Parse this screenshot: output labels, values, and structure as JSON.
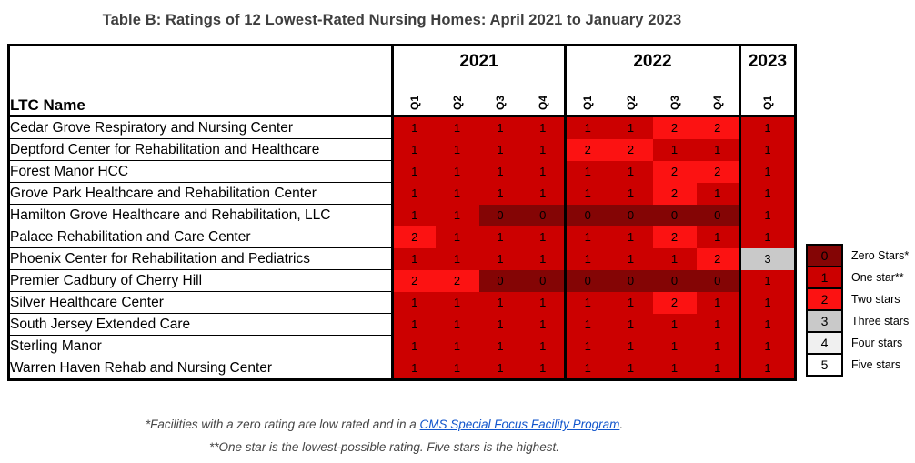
{
  "title": "Table B: Ratings of 12 Lowest-Rated Nursing Homes: April 2021 to January 2023",
  "table": {
    "ltc_header": "LTC Name",
    "year_groups": [
      {
        "year": "2021",
        "quarters": [
          "Q1",
          "Q2",
          "Q3",
          "Q4"
        ]
      },
      {
        "year": "2022",
        "quarters": [
          "Q1",
          "Q2",
          "Q3",
          "Q4"
        ]
      },
      {
        "year": "2023",
        "quarters": [
          "Q1"
        ]
      }
    ]
  },
  "rating_colors": {
    "0": "#840505",
    "1": "#cc0000",
    "2": "#fc1212",
    "3": "#c9c9c9",
    "4": "#f0f0f0",
    "5": "#ffffff"
  },
  "chart_data": {
    "type": "heatmap",
    "title": "Table B: Ratings of 12 Lowest-Rated Nursing Homes: April 2021 to January 2023",
    "x": [
      "2021 Q1",
      "2021 Q2",
      "2021 Q3",
      "2021 Q4",
      "2022 Q1",
      "2022 Q2",
      "2022 Q3",
      "2022 Q4",
      "2023 Q1"
    ],
    "value_meaning": {
      "0": "Zero Stars",
      "1": "One star",
      "2": "Two stars",
      "3": "Three stars",
      "4": "Four stars",
      "5": "Five stars"
    },
    "legend_position": "right",
    "rows": [
      {
        "name": "Cedar Grove Respiratory and Nursing Center",
        "values": [
          1,
          1,
          1,
          1,
          1,
          1,
          2,
          2,
          1
        ]
      },
      {
        "name": "Deptford Center for Rehabilitation and Healthcare",
        "values": [
          1,
          1,
          1,
          1,
          2,
          2,
          1,
          1,
          1
        ]
      },
      {
        "name": "Forest Manor HCC",
        "values": [
          1,
          1,
          1,
          1,
          1,
          1,
          2,
          2,
          1
        ]
      },
      {
        "name": "Grove Park Healthcare and Rehabilitation Center",
        "values": [
          1,
          1,
          1,
          1,
          1,
          1,
          2,
          1,
          1
        ]
      },
      {
        "name": "Hamilton Grove Healthcare and Rehabilitation, LLC",
        "values": [
          1,
          1,
          0,
          0,
          0,
          0,
          0,
          0,
          1
        ]
      },
      {
        "name": "Palace Rehabilitation and Care Center",
        "values": [
          2,
          1,
          1,
          1,
          1,
          1,
          2,
          1,
          1
        ]
      },
      {
        "name": "Phoenix Center for Rehabilitation and Pediatrics",
        "values": [
          1,
          1,
          1,
          1,
          1,
          1,
          1,
          2,
          3
        ]
      },
      {
        "name": "Premier Cadbury of Cherry Hill",
        "values": [
          2,
          2,
          0,
          0,
          0,
          0,
          0,
          0,
          1
        ]
      },
      {
        "name": "Silver Healthcare Center",
        "values": [
          1,
          1,
          1,
          1,
          1,
          1,
          2,
          1,
          1
        ]
      },
      {
        "name": "South Jersey Extended Care",
        "values": [
          1,
          1,
          1,
          1,
          1,
          1,
          1,
          1,
          1
        ]
      },
      {
        "name": "Sterling Manor",
        "values": [
          1,
          1,
          1,
          1,
          1,
          1,
          1,
          1,
          1
        ]
      },
      {
        "name": "Warren Haven Rehab and Nursing Center",
        "values": [
          1,
          1,
          1,
          1,
          1,
          1,
          1,
          1,
          1
        ]
      }
    ]
  },
  "legend": [
    {
      "value": "0",
      "label": "Zero Stars*"
    },
    {
      "value": "1",
      "label": "One star**"
    },
    {
      "value": "2",
      "label": "Two stars"
    },
    {
      "value": "3",
      "label": "Three stars"
    },
    {
      "value": "4",
      "label": "Four stars"
    },
    {
      "value": "5",
      "label": "Five stars"
    }
  ],
  "footnotes": {
    "line1_prefix": "*Facilities with a zero rating are low rated and in a ",
    "line1_link": "CMS Special Focus Facility Program",
    "line1_suffix": ".",
    "line2": "**One star is the lowest-possible rating. Five stars is the highest."
  }
}
